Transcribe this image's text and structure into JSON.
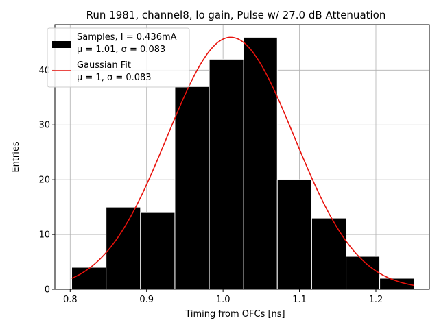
{
  "chart_data": {
    "type": "bar",
    "title": "Run 1981, channel8, lo gain, Pulse w/ 27.0 dB Attenuation",
    "xlabel": "Timing from OFCs [ns]",
    "ylabel": "Entries",
    "xlim": [
      0.78,
      1.27
    ],
    "ylim": [
      0,
      48.3
    ],
    "grid": true,
    "xticks": [
      0.8,
      0.9,
      1.0,
      1.1,
      1.2
    ],
    "xtick_labels": [
      "0.8",
      "0.9",
      "1.0",
      "1.1",
      "1.2"
    ],
    "yticks": [
      0,
      10,
      20,
      30,
      40
    ],
    "ytick_labels": [
      "0",
      "10",
      "20",
      "30",
      "40"
    ],
    "histogram": {
      "name": "Samples",
      "bin_edges": [
        0.802,
        0.847,
        0.892,
        0.937,
        0.982,
        1.027,
        1.071,
        1.116,
        1.161,
        1.205,
        1.25
      ],
      "counts": [
        4,
        15,
        14,
        37,
        42,
        46,
        20,
        13,
        6,
        2
      ],
      "color": "#000000",
      "edge_color": "#ffffff"
    },
    "fit": {
      "name": "Gaussian Fit",
      "mu": 1.01,
      "sigma": 0.083,
      "amplitude": 46,
      "x_range": [
        0.802,
        1.25
      ],
      "color": "#e8120c"
    },
    "legend": {
      "placement": "top-left",
      "entries": [
        {
          "kind": "bar",
          "line1": "Samples, I = 0.436mA",
          "line2": "μ = 1.01, σ = 0.083"
        },
        {
          "kind": "line",
          "line1": "Gaussian Fit",
          "line2": "μ = 1, σ = 0.083"
        }
      ]
    }
  }
}
